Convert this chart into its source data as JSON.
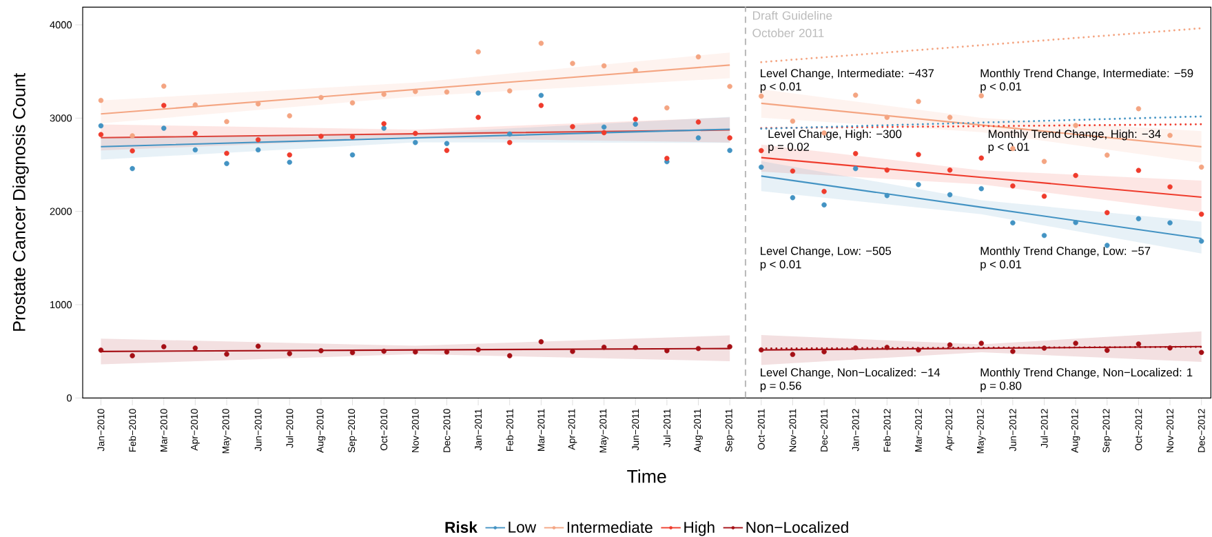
{
  "chart_data": {
    "type": "scatter",
    "xlabel": "Time",
    "ylabel": "Prostate Cancer Diagnosis Count",
    "legend_title": "Risk",
    "legend": "bottom",
    "categories": [
      "Jan−2010",
      "Feb−2010",
      "Mar−2010",
      "Apr−2010",
      "May−2010",
      "Jun−2010",
      "Jul−2010",
      "Aug−2010",
      "Sep−2010",
      "Oct−2010",
      "Nov−2010",
      "Dec−2010",
      "Jan−2011",
      "Feb−2011",
      "Mar−2011",
      "Apr−2011",
      "May−2011",
      "Jun−2011",
      "Jul−2011",
      "Aug−2011",
      "Sep−2011",
      "Oct−2011",
      "Nov−2011",
      "Dec−2011",
      "Jan−2012",
      "Feb−2012",
      "Mar−2012",
      "Apr−2012",
      "May−2012",
      "Jun−2012",
      "Jul−2012",
      "Aug−2012",
      "Sep−2012",
      "Oct−2012",
      "Nov−2012",
      "Dec−2012"
    ],
    "ylim": [
      0,
      4190
    ],
    "yticks": [
      0,
      1000,
      2000,
      3000,
      4000
    ],
    "series": [
      {
        "type": "line",
        "color": "#f4a582",
        "line_style": "solid",
        "values": [
          3045,
          null,
          null,
          null,
          null,
          null,
          null,
          null,
          null,
          null,
          3307,
          null,
          null,
          null,
          null,
          null,
          null,
          null,
          null,
          null,
          3569,
          null,
          null,
          null,
          null,
          null,
          null,
          null,
          null,
          null,
          null,
          null,
          null,
          null,
          null,
          null
        ],
        "lower": [
          2943,
          null,
          null,
          null,
          null,
          null,
          null,
          null,
          null,
          null,
          3232,
          null,
          null,
          null,
          null,
          null,
          null,
          null,
          null,
          null,
          3428,
          null,
          null,
          null,
          null,
          null,
          null,
          null,
          null,
          null,
          null,
          null,
          null,
          null,
          null,
          null
        ],
        "upper": [
          3190,
          null,
          null,
          null,
          null,
          null,
          null,
          null,
          null,
          null,
          3382,
          null,
          null,
          null,
          null,
          null,
          null,
          null,
          null,
          null,
          3703,
          null,
          null,
          null,
          null,
          null,
          null,
          null,
          null,
          null,
          null,
          null,
          null,
          null,
          null,
          null
        ]
      },
      {
        "type": "line",
        "color": "#f4a582",
        "line_style": "solid",
        "values": [
          null,
          null,
          null,
          null,
          null,
          null,
          null,
          null,
          null,
          null,
          null,
          null,
          null,
          null,
          null,
          null,
          null,
          null,
          null,
          null,
          null,
          3159,
          null,
          null,
          null,
          null,
          null,
          null,
          2926,
          null,
          null,
          null,
          null,
          null,
          null,
          2693
        ],
        "lower": [
          null,
          null,
          null,
          null,
          null,
          null,
          null,
          null,
          null,
          null,
          null,
          null,
          null,
          null,
          null,
          null,
          null,
          null,
          null,
          null,
          null,
          3005,
          null,
          null,
          null,
          null,
          null,
          null,
          2850,
          null,
          null,
          null,
          null,
          null,
          null,
          2523
        ],
        "upper": [
          null,
          null,
          null,
          null,
          null,
          null,
          null,
          null,
          null,
          null,
          null,
          null,
          null,
          null,
          null,
          null,
          null,
          null,
          null,
          null,
          null,
          3309,
          null,
          null,
          null,
          null,
          null,
          null,
          3002,
          null,
          null,
          null,
          null,
          null,
          null,
          2860
        ]
      },
      {
        "type": "line",
        "color": "#f4a582",
        "line_style": "dotted",
        "values": [
          null,
          null,
          null,
          null,
          null,
          null,
          null,
          null,
          null,
          null,
          null,
          null,
          null,
          null,
          null,
          null,
          null,
          null,
          null,
          null,
          null,
          3600,
          null,
          null,
          null,
          null,
          null,
          null,
          null,
          null,
          null,
          null,
          null,
          null,
          null,
          3963
        ]
      },
      {
        "type": "line",
        "color": "#ef3b2c",
        "line_style": "solid",
        "values": [
          2790,
          null,
          null,
          null,
          null,
          null,
          null,
          null,
          null,
          null,
          2832,
          null,
          null,
          null,
          null,
          null,
          null,
          null,
          null,
          null,
          2873,
          null,
          null,
          null,
          null,
          null,
          null,
          null,
          null,
          null,
          null,
          null,
          null,
          null,
          null,
          null
        ],
        "lower": [
          2654,
          null,
          null,
          null,
          null,
          null,
          null,
          null,
          null,
          null,
          2787,
          null,
          null,
          null,
          null,
          null,
          null,
          null,
          null,
          null,
          2739,
          null,
          null,
          null,
          null,
          null,
          null,
          null,
          null,
          null,
          null,
          null,
          null,
          null,
          null,
          null
        ],
        "upper": [
          2932,
          null,
          null,
          null,
          null,
          null,
          null,
          null,
          null,
          null,
          2877,
          null,
          null,
          null,
          null,
          null,
          null,
          null,
          null,
          null,
          3008,
          null,
          null,
          null,
          null,
          null,
          null,
          null,
          null,
          null,
          null,
          null,
          null,
          null,
          null,
          null
        ]
      },
      {
        "type": "line",
        "color": "#ef3b2c",
        "line_style": "solid",
        "values": [
          null,
          null,
          null,
          null,
          null,
          null,
          null,
          null,
          null,
          null,
          null,
          null,
          null,
          null,
          null,
          null,
          null,
          null,
          null,
          null,
          null,
          2577,
          null,
          null,
          null,
          null,
          null,
          null,
          2365,
          null,
          null,
          null,
          null,
          null,
          null,
          2153
        ],
        "lower": [
          null,
          null,
          null,
          null,
          null,
          null,
          null,
          null,
          null,
          null,
          null,
          null,
          null,
          null,
          null,
          null,
          null,
          null,
          null,
          null,
          null,
          2427,
          null,
          null,
          null,
          null,
          null,
          null,
          2290,
          null,
          null,
          null,
          null,
          null,
          null,
          1993
        ],
        "upper": [
          null,
          null,
          null,
          null,
          null,
          null,
          null,
          null,
          null,
          null,
          null,
          null,
          null,
          null,
          null,
          null,
          null,
          null,
          null,
          null,
          null,
          2716,
          null,
          null,
          null,
          null,
          null,
          null,
          2440,
          null,
          null,
          null,
          null,
          null,
          null,
          2331
        ]
      },
      {
        "type": "line",
        "color": "#ef3b2c",
        "line_style": "dotted",
        "values": [
          null,
          null,
          null,
          null,
          null,
          null,
          null,
          null,
          null,
          null,
          null,
          null,
          null,
          null,
          null,
          null,
          null,
          null,
          null,
          null,
          null,
          2893,
          null,
          null,
          null,
          null,
          null,
          null,
          null,
          null,
          null,
          null,
          null,
          null,
          null,
          2934
        ]
      },
      {
        "type": "line",
        "color": "#4393c3",
        "line_style": "solid",
        "values": [
          2694,
          null,
          null,
          null,
          null,
          null,
          null,
          null,
          null,
          null,
          2788,
          null,
          null,
          null,
          null,
          null,
          null,
          null,
          null,
          null,
          2881,
          null,
          null,
          null,
          null,
          null,
          null,
          null,
          null,
          null,
          null,
          null,
          null,
          null,
          null,
          null
        ],
        "lower": [
          2555,
          null,
          null,
          null,
          null,
          null,
          null,
          null,
          null,
          null,
          2740,
          null,
          null,
          null,
          null,
          null,
          null,
          null,
          null,
          null,
          2734,
          null,
          null,
          null,
          null,
          null,
          null,
          null,
          null,
          null,
          null,
          null,
          null,
          null,
          null,
          null
        ],
        "upper": [
          2796,
          null,
          null,
          null,
          null,
          null,
          null,
          null,
          null,
          null,
          2836,
          null,
          null,
          null,
          null,
          null,
          null,
          null,
          null,
          null,
          3014,
          null,
          null,
          null,
          null,
          null,
          null,
          null,
          null,
          null,
          null,
          null,
          null,
          null,
          null,
          null
        ]
      },
      {
        "type": "line",
        "color": "#4393c3",
        "line_style": "solid",
        "values": [
          null,
          null,
          null,
          null,
          null,
          null,
          null,
          null,
          null,
          null,
          null,
          null,
          null,
          null,
          null,
          null,
          null,
          null,
          null,
          null,
          null,
          2379,
          null,
          null,
          null,
          null,
          null,
          null,
          2045,
          null,
          null,
          null,
          null,
          null,
          null,
          1710
        ],
        "lower": [
          null,
          null,
          null,
          null,
          null,
          null,
          null,
          null,
          null,
          null,
          null,
          null,
          null,
          null,
          null,
          null,
          null,
          null,
          null,
          null,
          null,
          2218,
          null,
          null,
          null,
          null,
          null,
          null,
          1970,
          null,
          null,
          null,
          null,
          null,
          null,
          1549
        ],
        "upper": [
          null,
          null,
          null,
          null,
          null,
          null,
          null,
          null,
          null,
          null,
          null,
          null,
          null,
          null,
          null,
          null,
          null,
          null,
          null,
          null,
          null,
          2539,
          null,
          null,
          null,
          null,
          null,
          null,
          2120,
          null,
          null,
          null,
          null,
          null,
          null,
          1890
        ]
      },
      {
        "type": "line",
        "color": "#4393c3",
        "line_style": "dotted",
        "values": [
          null,
          null,
          null,
          null,
          null,
          null,
          null,
          null,
          null,
          null,
          null,
          null,
          null,
          null,
          null,
          null,
          null,
          null,
          null,
          null,
          null,
          2886,
          null,
          null,
          null,
          null,
          null,
          null,
          null,
          null,
          null,
          null,
          null,
          null,
          null,
          3018
        ]
      },
      {
        "type": "line",
        "color": "#a50f15",
        "line_style": "solid",
        "values": [
          499,
          null,
          null,
          null,
          null,
          null,
          null,
          null,
          null,
          null,
          515,
          null,
          null,
          null,
          null,
          null,
          null,
          null,
          null,
          null,
          530,
          null,
          null,
          null,
          null,
          null,
          null,
          null,
          null,
          null,
          null,
          null,
          null,
          null,
          null,
          null
        ],
        "lower": [
          360,
          null,
          null,
          null,
          null,
          null,
          null,
          null,
          null,
          null,
          470,
          null,
          null,
          null,
          null,
          null,
          null,
          null,
          null,
          null,
          394,
          null,
          null,
          null,
          null,
          null,
          null,
          null,
          null,
          null,
          null,
          null,
          null,
          null,
          null,
          null
        ],
        "upper": [
          637,
          null,
          null,
          null,
          null,
          null,
          null,
          null,
          null,
          null,
          560,
          null,
          null,
          null,
          null,
          null,
          null,
          null,
          null,
          null,
          671,
          null,
          null,
          null,
          null,
          null,
          null,
          null,
          null,
          null,
          null,
          null,
          null,
          null,
          null,
          null
        ]
      },
      {
        "type": "line",
        "color": "#a50f15",
        "line_style": "solid",
        "values": [
          null,
          null,
          null,
          null,
          null,
          null,
          null,
          null,
          null,
          null,
          null,
          null,
          null,
          null,
          null,
          null,
          null,
          null,
          null,
          null,
          null,
          515,
          null,
          null,
          null,
          null,
          null,
          null,
          533,
          null,
          null,
          null,
          null,
          null,
          null,
          551
        ],
        "lower": [
          null,
          null,
          null,
          null,
          null,
          null,
          null,
          null,
          null,
          null,
          null,
          null,
          null,
          null,
          null,
          null,
          null,
          null,
          null,
          null,
          null,
          354,
          null,
          null,
          null,
          null,
          null,
          null,
          490,
          null,
          null,
          null,
          null,
          null,
          null,
          386
        ],
        "upper": [
          null,
          null,
          null,
          null,
          null,
          null,
          null,
          null,
          null,
          null,
          null,
          null,
          null,
          null,
          null,
          null,
          null,
          null,
          null,
          null,
          null,
          675,
          null,
          null,
          null,
          null,
          null,
          null,
          576,
          null,
          null,
          null,
          null,
          null,
          null,
          714
        ]
      },
      {
        "type": "line",
        "color": "#a50f15",
        "line_style": "dotted",
        "values": [
          null,
          null,
          null,
          null,
          null,
          null,
          null,
          null,
          null,
          null,
          null,
          null,
          null,
          null,
          null,
          null,
          null,
          null,
          null,
          null,
          null,
          530,
          null,
          null,
          null,
          null,
          null,
          null,
          null,
          null,
          null,
          null,
          null,
          null,
          null,
          548
        ]
      },
      {
        "name": "Low",
        "marker": "circle",
        "color": "#4393c3",
        "values": [
          2918,
          2459,
          2892,
          2660,
          2513,
          2660,
          2527,
          null,
          2606,
          2892,
          2739,
          2728,
          3269,
          2830,
          3244,
          null,
          2904,
          2935,
          2533,
          2788,
          2654,
          2475,
          2147,
          2070,
          2459,
          2170,
          2288,
          2179,
          2244,
          1877,
          1742,
          1881,
          1636,
          1922,
          1877,
          1681
        ]
      },
      {
        "name": "Intermediate",
        "marker": "circle",
        "color": "#f4a582",
        "values": [
          3190,
          2810,
          3343,
          3142,
          2963,
          3153,
          3025,
          3221,
          3164,
          3255,
          3286,
          3280,
          3711,
          3292,
          3802,
          3586,
          3561,
          3513,
          3110,
          3657,
          3340,
          3236,
          2967,
          2841,
          3246,
          3008,
          3179,
          3008,
          3240,
          2674,
          2536,
          2922,
          2603,
          3101,
          2815,
          2475
        ]
      },
      {
        "name": "High",
        "marker": "circle",
        "color": "#ef3b2c",
        "values": [
          2824,
          2649,
          3136,
          2836,
          2623,
          2768,
          2606,
          2805,
          2799,
          2940,
          2836,
          2654,
          3008,
          2739,
          3136,
          2909,
          2844,
          2989,
          2569,
          2958,
          2788,
          2652,
          2433,
          2214,
          2620,
          2443,
          2610,
          2443,
          2572,
          2273,
          2163,
          2385,
          1987,
          2440,
          2263,
          1970
        ]
      },
      {
        "name": "Non−Localized",
        "marker": "circle",
        "color": "#a50f15",
        "values": [
          513,
          453,
          550,
          535,
          470,
          555,
          476,
          507,
          487,
          501,
          493,
          493,
          518,
          453,
          603,
          499,
          544,
          541,
          507,
          530,
          550,
          515,
          467,
          495,
          537,
          543,
          515,
          569,
          586,
          499,
          534,
          586,
          511,
          579,
          537,
          489
        ]
      }
    ],
    "annotations": [
      "Draft Guideline October 2011",
      "Level Change, Intermediate:  −437",
      "p < 0.01",
      "Monthly Trend Change, Intermediate:  −59",
      "p < 0.01",
      "Level Change, High:  −300",
      "p = 0.02",
      "Monthly Trend Change, High:  −34",
      "p < 0.01",
      "Level Change, Low:  −505",
      "p < 0.01",
      "Monthly Trend Change, Low:  −57",
      "p < 0.01",
      "Level Change, Non−Localized:  −14",
      "p = 0.56",
      "Monthly Trend Change, Non−Localized:  1",
      "p = 0.80"
    ]
  }
}
